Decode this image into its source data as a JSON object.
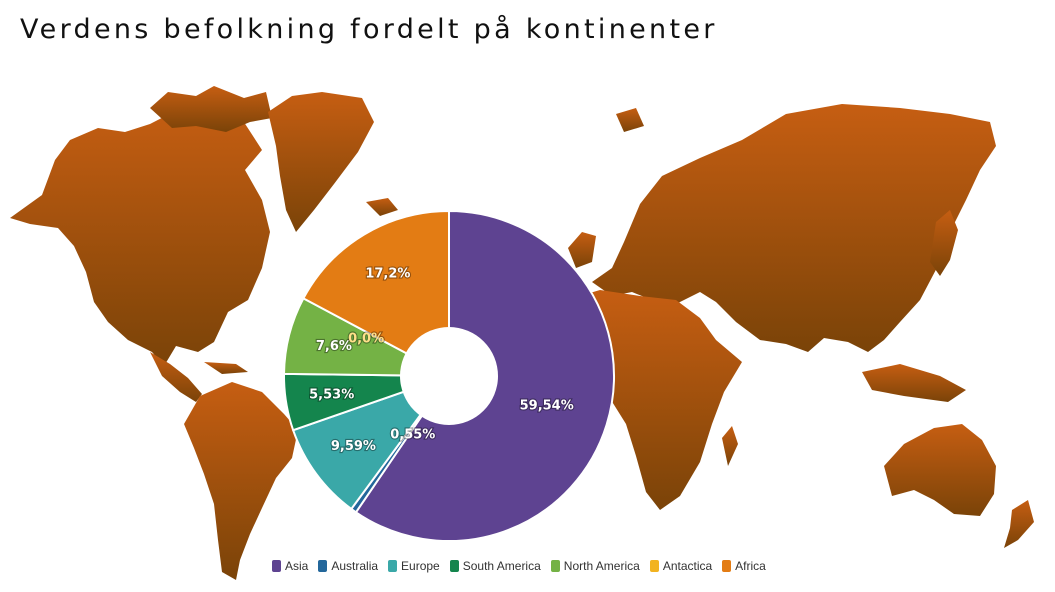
{
  "title": "Verdens befolkning fordelt på kontinenter",
  "colors": {
    "map_top": "#c65e12",
    "map_bottom": "#7a4308",
    "background": "#ffffff"
  },
  "chart_data": {
    "type": "pie",
    "donut": true,
    "title": "Verdens befolkning fordelt på kontinenter",
    "legend_position": "bottom",
    "series": [
      {
        "name": "Asia",
        "value": 59.54,
        "label": "59,54%",
        "color": "#5e4391",
        "label_color": "#ffffff"
      },
      {
        "name": "Australia",
        "value": 0.55,
        "label": "0,55%",
        "color": "#23679b",
        "label_color": "#ffffff"
      },
      {
        "name": "Europe",
        "value": 9.59,
        "label": "9,59%",
        "color": "#3aa8a8",
        "label_color": "#ffffff"
      },
      {
        "name": "South America",
        "value": 5.53,
        "label": "5,53%",
        "color": "#14854d",
        "label_color": "#ffffff"
      },
      {
        "name": "North America",
        "value": 7.6,
        "label": "7,6%",
        "color": "#74b245",
        "label_color": "#ffffff"
      },
      {
        "name": "Antactica",
        "value": 0.0,
        "label": "0,0%",
        "color": "#f2b320",
        "label_color": "#ffe08a"
      },
      {
        "name": "Africa",
        "value": 17.2,
        "label": "17,2%",
        "color": "#e37c14",
        "label_color": "#ffffff"
      }
    ]
  }
}
